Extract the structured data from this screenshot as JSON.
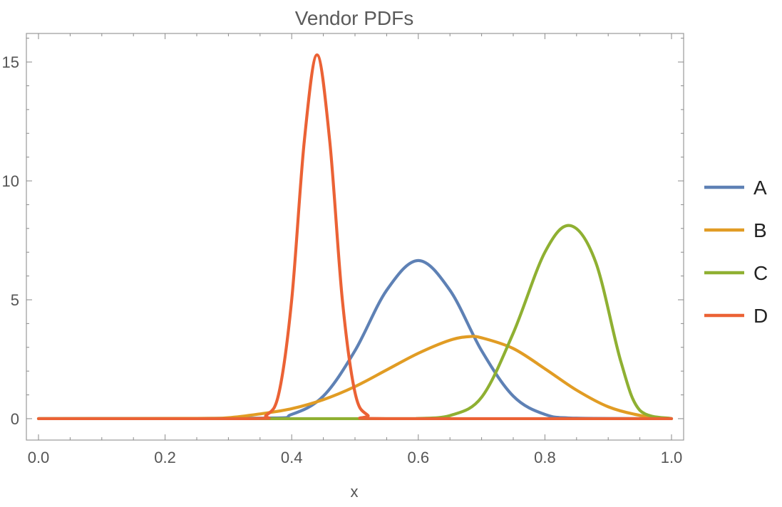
{
  "chart_data": {
    "type": "line",
    "title": "Vendor PDFs",
    "xlabel": "x",
    "ylabel": "",
    "xlim": [
      0,
      1
    ],
    "ylim": [
      -0.9,
      16.2
    ],
    "x_ticks": [
      0.0,
      0.2,
      0.4,
      0.6,
      0.8,
      1.0
    ],
    "x_tick_labels": [
      "0.0",
      "0.2",
      "0.4",
      "0.6",
      "0.8",
      "1.0"
    ],
    "y_ticks": [
      0,
      5,
      10,
      15
    ],
    "y_tick_labels": [
      "0",
      "5",
      "10",
      "15"
    ],
    "grid": false,
    "legend_position": "right",
    "series": [
      {
        "name": "A",
        "color": "#5e81b5",
        "x": [
          0.0,
          0.35,
          0.4,
          0.45,
          0.5,
          0.55,
          0.6,
          0.65,
          0.7,
          0.75,
          0.8,
          0.85,
          1.0
        ],
        "y": [
          0.0,
          0.02,
          0.18,
          0.95,
          2.86,
          5.4,
          6.65,
          5.4,
          2.86,
          0.95,
          0.18,
          0.02,
          0.0
        ]
      },
      {
        "name": "B",
        "color": "#e19c24",
        "x": [
          0.0,
          0.25,
          0.3,
          0.35,
          0.4,
          0.45,
          0.5,
          0.55,
          0.6,
          0.65,
          0.68,
          0.7,
          0.75,
          0.8,
          0.85,
          0.9,
          0.95,
          1.0
        ],
        "y": [
          0.0,
          0.01,
          0.04,
          0.2,
          0.42,
          0.8,
          1.35,
          2.05,
          2.75,
          3.3,
          3.45,
          3.4,
          2.95,
          2.1,
          1.2,
          0.5,
          0.14,
          0.0
        ]
      },
      {
        "name": "C",
        "color": "#8fb032",
        "x": [
          0.0,
          0.55,
          0.6,
          0.65,
          0.7,
          0.75,
          0.8,
          0.84,
          0.88,
          0.92,
          0.95,
          1.0
        ],
        "y": [
          0.0,
          0.0,
          0.01,
          0.13,
          0.9,
          3.6,
          7.0,
          8.12,
          6.6,
          2.4,
          0.35,
          0.0
        ]
      },
      {
        "name": "D",
        "color": "#eb6235",
        "x": [
          0.0,
          0.33,
          0.36,
          0.38,
          0.4,
          0.42,
          0.44,
          0.46,
          0.48,
          0.5,
          0.52,
          0.55,
          1.0
        ],
        "y": [
          0.0,
          0.0,
          0.15,
          1.1,
          5.0,
          11.7,
          15.3,
          11.7,
          5.0,
          1.1,
          0.15,
          0.0,
          0.0
        ]
      }
    ]
  }
}
